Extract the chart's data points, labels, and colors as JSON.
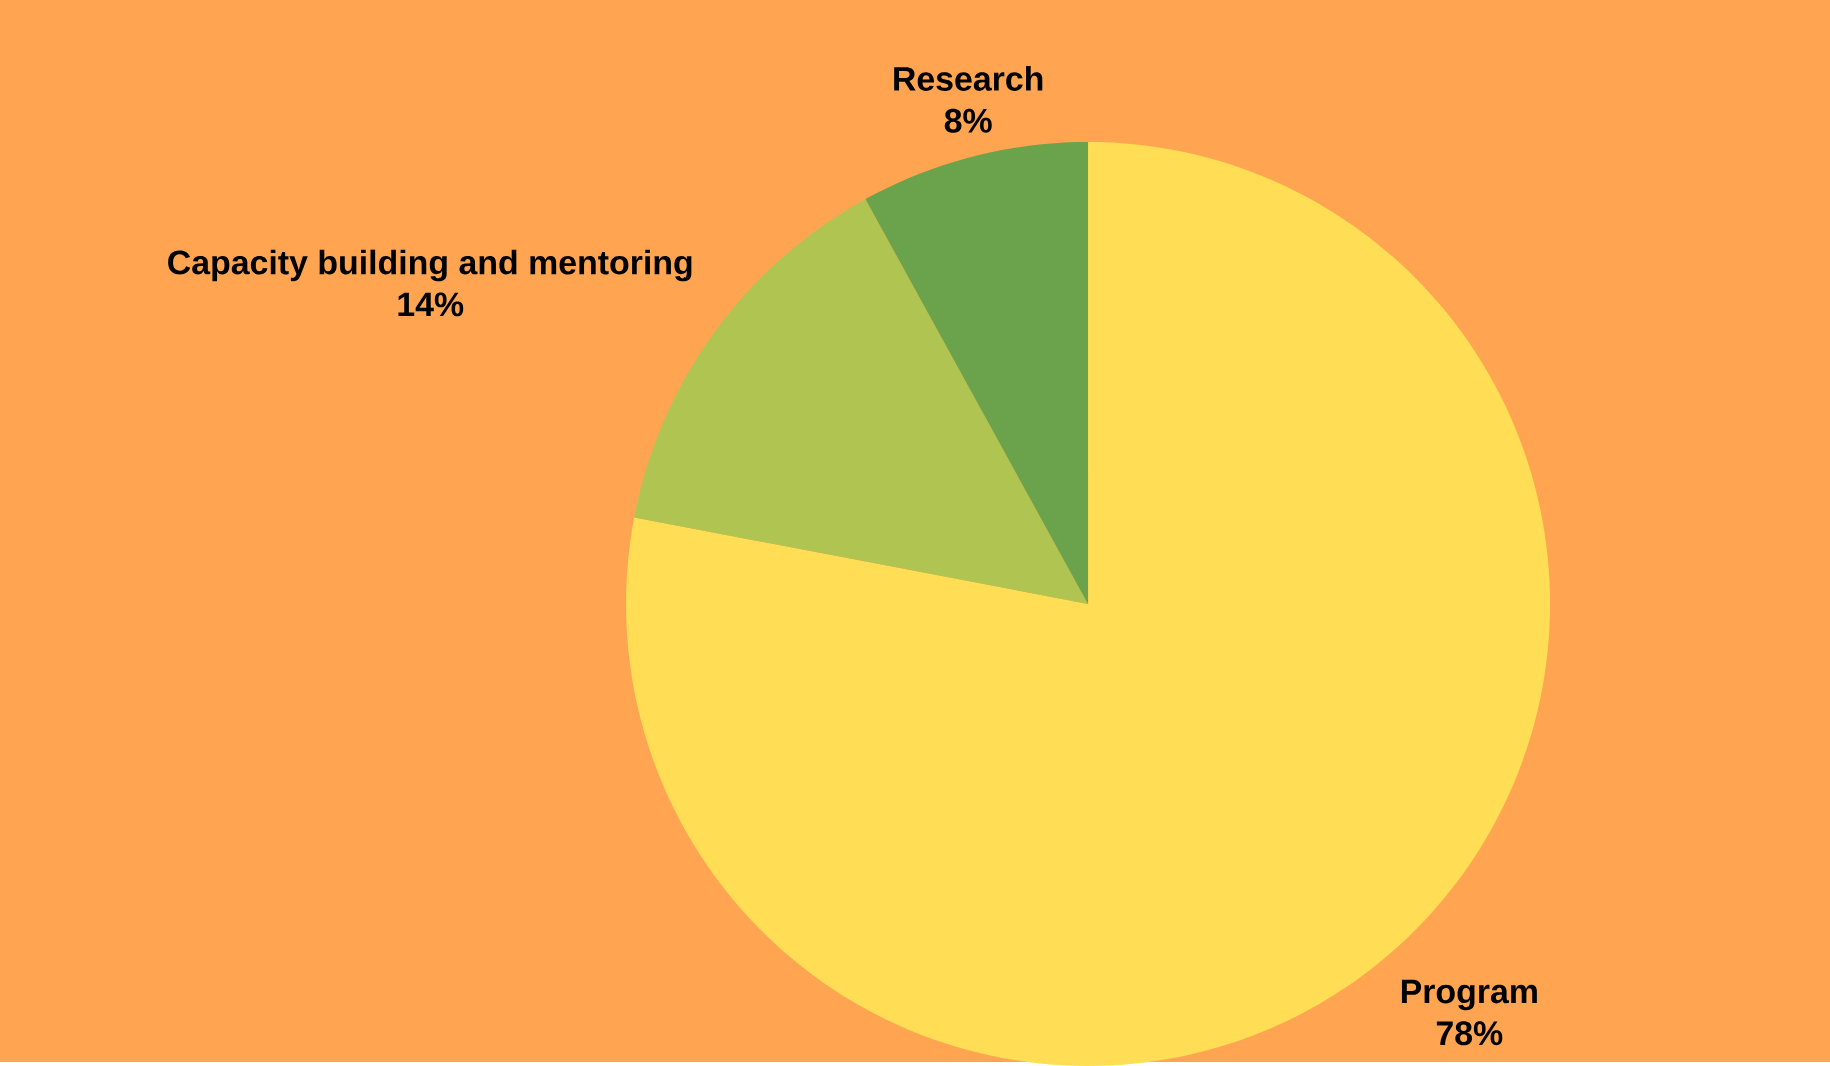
{
  "chart_data": {
    "type": "pie",
    "categories": [
      "Program",
      "Capacity building and mentoring",
      "Research"
    ],
    "values": [
      78,
      14,
      8
    ],
    "value_labels": [
      "78%",
      "14%",
      "8%"
    ],
    "colors": [
      "#ffdd55",
      "#b0c452",
      "#6aa34b"
    ]
  }
}
